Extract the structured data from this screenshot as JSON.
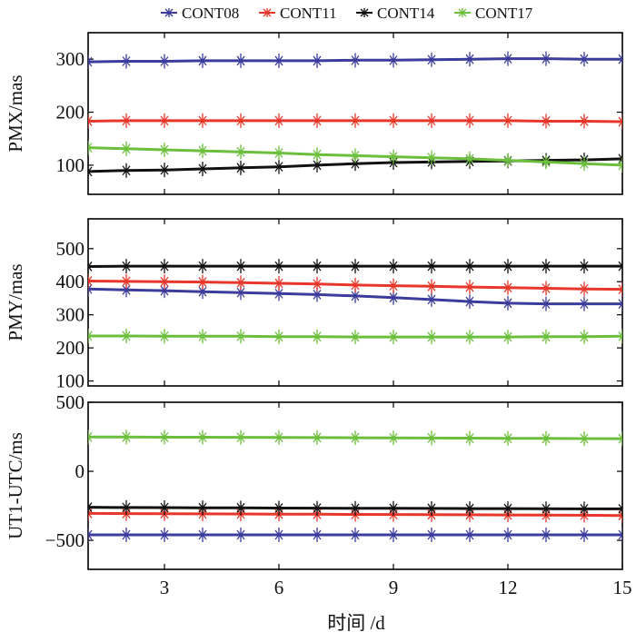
{
  "legend": [
    {
      "name": "CONT08",
      "color": "#3c3c9c"
    },
    {
      "name": "CONT11",
      "color": "#e8372a"
    },
    {
      "name": "CONT14",
      "color": "#111111"
    },
    {
      "name": "CONT17",
      "color": "#6cbf3c"
    }
  ],
  "xlabel": "时间 /d",
  "chart_data": [
    {
      "type": "line",
      "ylabel": "PMX/mas",
      "x": [
        1,
        2,
        3,
        4,
        5,
        6,
        7,
        8,
        9,
        10,
        11,
        12,
        13,
        14,
        15
      ],
      "xlim": [
        1,
        15
      ],
      "xticks": [
        3,
        6,
        9,
        12,
        15
      ],
      "ylim": [
        45,
        350
      ],
      "yticks": [
        100,
        200,
        300
      ],
      "series": [
        {
          "name": "CONT08",
          "values": [
            295,
            296,
            296,
            297,
            297,
            297,
            297,
            298,
            298,
            299,
            300,
            301,
            301,
            300,
            300
          ]
        },
        {
          "name": "CONT11",
          "values": [
            183,
            184,
            184,
            184,
            184,
            184,
            184,
            184,
            184,
            184,
            184,
            184,
            183,
            183,
            182
          ]
        },
        {
          "name": "CONT14",
          "values": [
            88,
            90,
            91,
            93,
            95,
            97,
            100,
            103,
            105,
            106,
            107,
            108,
            109,
            110,
            112
          ]
        },
        {
          "name": "CONT17",
          "values": [
            133,
            131,
            129,
            127,
            125,
            123,
            120,
            118,
            116,
            114,
            112,
            109,
            106,
            103,
            100
          ]
        }
      ]
    },
    {
      "type": "line",
      "ylabel": "PMY/mas",
      "x": [
        1,
        2,
        3,
        4,
        5,
        6,
        7,
        8,
        9,
        10,
        11,
        12,
        13,
        14,
        15
      ],
      "xlim": [
        1,
        15
      ],
      "xticks": [
        3,
        6,
        9,
        12,
        15
      ],
      "ylim": [
        85,
        590
      ],
      "yticks": [
        100,
        200,
        300,
        400,
        500
      ],
      "series": [
        {
          "name": "CONT08",
          "values": [
            378,
            375,
            373,
            370,
            367,
            364,
            361,
            357,
            352,
            346,
            340,
            335,
            333,
            333,
            333
          ]
        },
        {
          "name": "CONT11",
          "values": [
            402,
            401,
            400,
            399,
            397,
            395,
            393,
            390,
            388,
            386,
            384,
            382,
            380,
            378,
            377
          ]
        },
        {
          "name": "CONT14",
          "values": [
            446,
            447,
            447,
            447,
            447,
            447,
            447,
            447,
            447,
            447,
            447,
            447,
            447,
            447,
            447
          ]
        },
        {
          "name": "CONT17",
          "values": [
            236,
            236,
            235,
            235,
            235,
            234,
            234,
            233,
            233,
            233,
            233,
            233,
            234,
            234,
            235
          ]
        }
      ]
    },
    {
      "type": "line",
      "ylabel": "UT1-UTC/ms",
      "x": [
        1,
        2,
        3,
        4,
        5,
        6,
        7,
        8,
        9,
        10,
        11,
        12,
        13,
        14,
        15
      ],
      "xlim": [
        1,
        15
      ],
      "xticks": [
        3,
        6,
        9,
        12,
        15
      ],
      "ylim": [
        -710,
        500
      ],
      "yticks": [
        -500,
        0,
        500
      ],
      "series": [
        {
          "name": "CONT08",
          "values": [
            -460,
            -460,
            -460,
            -460,
            -460,
            -460,
            -460,
            -460,
            -460,
            -460,
            -460,
            -460,
            -460,
            -460,
            -460
          ]
        },
        {
          "name": "CONT11",
          "values": [
            -305,
            -306,
            -307,
            -308,
            -309,
            -310,
            -311,
            -312,
            -313,
            -314,
            -315,
            -316,
            -317,
            -318,
            -320
          ]
        },
        {
          "name": "CONT14",
          "values": [
            -260,
            -262,
            -263,
            -264,
            -265,
            -266,
            -267,
            -268,
            -268,
            -269,
            -270,
            -270,
            -271,
            -272,
            -272
          ]
        },
        {
          "name": "CONT17",
          "values": [
            248,
            248,
            247,
            247,
            246,
            245,
            244,
            243,
            242,
            241,
            240,
            239,
            238,
            237,
            236
          ]
        }
      ]
    }
  ]
}
